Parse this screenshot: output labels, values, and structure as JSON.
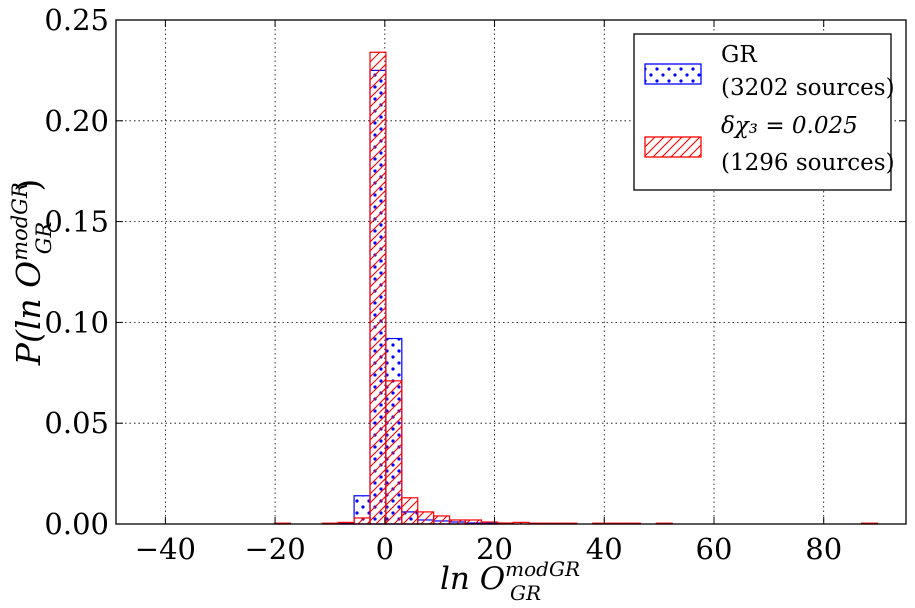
{
  "chart_data": {
    "type": "bar",
    "subtype": "overlaid-histogram",
    "title": "",
    "xlabel": {
      "base": "ln O",
      "sup": "modGR",
      "sub": "GR"
    },
    "ylabel": {
      "prefix": "P(ln O",
      "sup": "modGR",
      "sub": "GR",
      "suffix": ")"
    },
    "xlim": [
      -49,
      95
    ],
    "ylim": [
      0,
      0.25
    ],
    "xticks": [
      -40,
      -20,
      0,
      20,
      40,
      60,
      80
    ],
    "xtick_labels": [
      "−40",
      "−20",
      "0",
      "20",
      "40",
      "60",
      "80"
    ],
    "yticks": [
      0.0,
      0.05,
      0.1,
      0.15,
      0.2,
      0.25
    ],
    "ytick_labels": [
      "0.00",
      "0.05",
      "0.10",
      "0.15",
      "0.20",
      "0.25"
    ],
    "grid": true,
    "legend_position": "top-right",
    "bin_width": 2.9,
    "series": [
      {
        "legend_line1": "GR",
        "legend_line2": "(3202 sources)",
        "color": "#0000ff",
        "hatch": "dots",
        "bins": [
          [
            -8.5,
            0.0005
          ],
          [
            -5.6,
            0.014
          ],
          [
            -2.7,
            0.225
          ],
          [
            0.2,
            0.092
          ],
          [
            3.1,
            0.006
          ],
          [
            6.0,
            0.002
          ],
          [
            8.9,
            0.0015
          ],
          [
            11.8,
            0.001
          ],
          [
            14.7,
            0.0005
          ],
          [
            17.6,
            0.0004
          ]
        ]
      },
      {
        "legend_line1": "δχ₃ = 0.025",
        "legend_line2": "(1296 sources)",
        "color": "#ff0000",
        "hatch": "diagonal",
        "bins": [
          [
            -20.1,
            0.0004
          ],
          [
            -11.4,
            0.0004
          ],
          [
            -8.5,
            0.0008
          ],
          [
            -5.6,
            0.003
          ],
          [
            -2.7,
            0.234
          ],
          [
            0.2,
            0.071
          ],
          [
            3.1,
            0.013
          ],
          [
            6.0,
            0.006
          ],
          [
            8.9,
            0.004
          ],
          [
            11.8,
            0.002
          ],
          [
            14.7,
            0.002
          ],
          [
            17.6,
            0.001
          ],
          [
            20.5,
            0.0005
          ],
          [
            23.4,
            0.0008
          ],
          [
            26.3,
            0.0004
          ],
          [
            29.2,
            0.0004
          ],
          [
            32.1,
            0.0004
          ],
          [
            37.9,
            0.0004
          ],
          [
            40.8,
            0.0004
          ],
          [
            43.7,
            0.0004
          ],
          [
            49.5,
            0.0004
          ],
          [
            86.9,
            0.0004
          ]
        ]
      }
    ]
  }
}
